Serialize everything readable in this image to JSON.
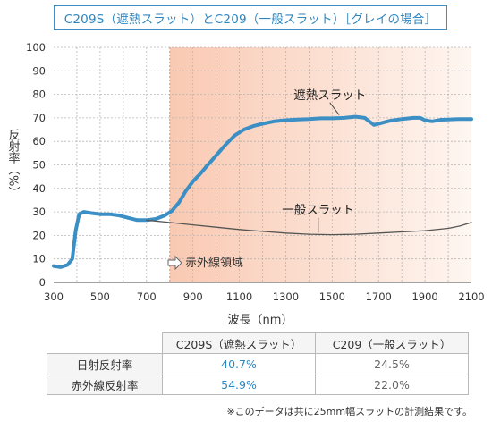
{
  "title": "C209S（遮熱スラット）とC209（一般スラット）［グレイの場合］",
  "chart_data": {
    "type": "line",
    "xlabel": "波長（nm）",
    "ylabel": "反射率（%）",
    "xlim": [
      300,
      2100
    ],
    "ylim": [
      0,
      100
    ],
    "x_ticks": [
      300,
      500,
      700,
      900,
      1100,
      1300,
      1500,
      1700,
      1900,
      2100
    ],
    "y_ticks": [
      0,
      10,
      20,
      30,
      40,
      50,
      60,
      70,
      80,
      90,
      100
    ],
    "grid": true,
    "shaded_region": {
      "from": 800,
      "to": 2100,
      "label": "赤外線領域"
    },
    "series": [
      {
        "name": "遮熱スラット",
        "color": "#3b8fc4",
        "points": [
          [
            300,
            7
          ],
          [
            330,
            6.5
          ],
          [
            360,
            7.5
          ],
          [
            380,
            10
          ],
          [
            395,
            22
          ],
          [
            410,
            29
          ],
          [
            430,
            30
          ],
          [
            460,
            29.5
          ],
          [
            500,
            29
          ],
          [
            540,
            29
          ],
          [
            580,
            28.5
          ],
          [
            620,
            27.5
          ],
          [
            660,
            26.5
          ],
          [
            700,
            26.5
          ],
          [
            740,
            27
          ],
          [
            780,
            28.5
          ],
          [
            810,
            30.5
          ],
          [
            840,
            34
          ],
          [
            870,
            39
          ],
          [
            900,
            43
          ],
          [
            930,
            46
          ],
          [
            960,
            49.5
          ],
          [
            1000,
            54
          ],
          [
            1040,
            58.5
          ],
          [
            1080,
            62.5
          ],
          [
            1120,
            65
          ],
          [
            1160,
            66.5
          ],
          [
            1200,
            67.5
          ],
          [
            1250,
            68.5
          ],
          [
            1300,
            69
          ],
          [
            1350,
            69.3
          ],
          [
            1400,
            69.5
          ],
          [
            1450,
            69.8
          ],
          [
            1500,
            69.8
          ],
          [
            1550,
            70
          ],
          [
            1600,
            70.5
          ],
          [
            1640,
            70
          ],
          [
            1660,
            68.5
          ],
          [
            1680,
            67
          ],
          [
            1700,
            67.5
          ],
          [
            1750,
            68.8
          ],
          [
            1800,
            69.5
          ],
          [
            1850,
            70
          ],
          [
            1880,
            70
          ],
          [
            1900,
            69
          ],
          [
            1930,
            68.5
          ],
          [
            1970,
            69.2
          ],
          [
            2000,
            69.3
          ],
          [
            2050,
            69.5
          ],
          [
            2100,
            69.5
          ]
        ]
      },
      {
        "name": "一般スラット",
        "color": "#555555",
        "points": [
          [
            700,
            26.5
          ],
          [
            800,
            25.5
          ],
          [
            900,
            24.5
          ],
          [
            1000,
            23.5
          ],
          [
            1100,
            22.5
          ],
          [
            1200,
            21.7
          ],
          [
            1300,
            21
          ],
          [
            1400,
            20.5
          ],
          [
            1500,
            20.3
          ],
          [
            1600,
            20.5
          ],
          [
            1700,
            21
          ],
          [
            1800,
            21.5
          ],
          [
            1900,
            22
          ],
          [
            2000,
            23
          ],
          [
            2050,
            24
          ],
          [
            2100,
            25.5
          ]
        ]
      }
    ]
  },
  "table": {
    "headers": [
      "C209S（遮熱スラット）",
      "C209（一般スラット）"
    ],
    "rows": [
      {
        "label": "日射反射率",
        "values": [
          "40.7%",
          "24.5%"
        ]
      },
      {
        "label": "赤外線反射率",
        "values": [
          "54.9%",
          "22.0%"
        ]
      }
    ]
  },
  "footnote": "※このデータは共に25mm幅スラットの計測結果です。"
}
